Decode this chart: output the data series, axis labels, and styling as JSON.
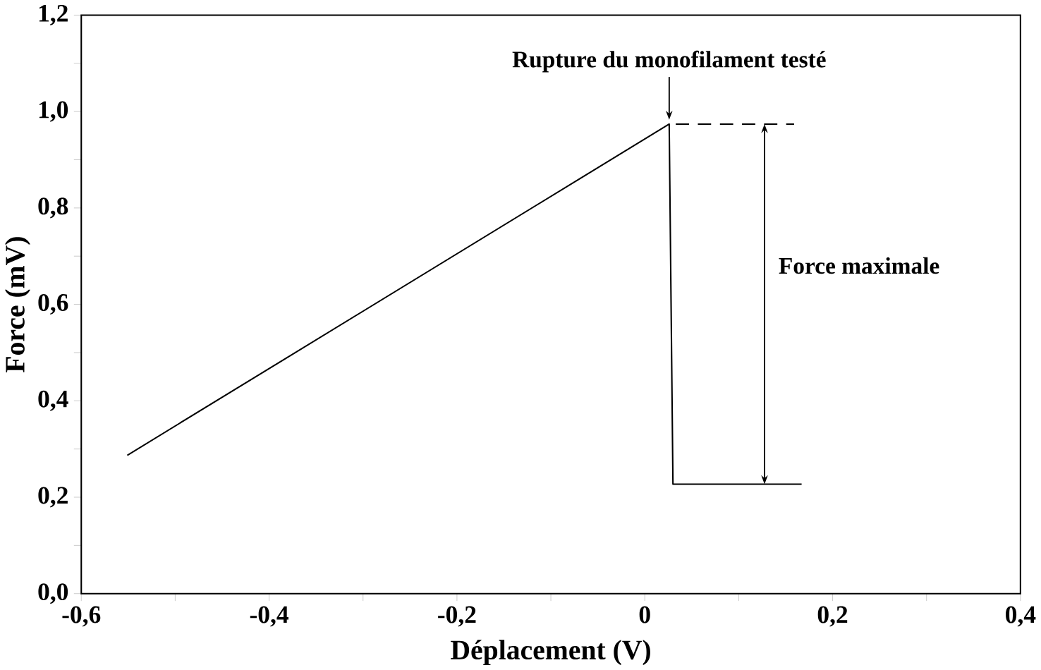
{
  "chart_data": {
    "type": "line",
    "xlabel": "Déplacement (V)",
    "ylabel": "Force (mV)",
    "xlim": [
      -0.6,
      0.4
    ],
    "ylim": [
      0,
      1.2
    ],
    "xticks": [
      {
        "value": -0.6,
        "label": "-0,6"
      },
      {
        "value": -0.5,
        "label": null
      },
      {
        "value": -0.4,
        "label": "-0,4"
      },
      {
        "value": -0.3,
        "label": null
      },
      {
        "value": -0.2,
        "label": "-0,2"
      },
      {
        "value": -0.1,
        "label": null
      },
      {
        "value": 0,
        "label": "0"
      },
      {
        "value": 0.1,
        "label": null
      },
      {
        "value": 0.2,
        "label": "0,2"
      },
      {
        "value": 0.3,
        "label": null
      },
      {
        "value": 0.4,
        "label": "0,4"
      }
    ],
    "yticks": [
      {
        "value": 0,
        "label": "0,0"
      },
      {
        "value": 0.1,
        "label": null
      },
      {
        "value": 0.2,
        "label": "0,2"
      },
      {
        "value": 0.3,
        "label": null
      },
      {
        "value": 0.4,
        "label": "0,4"
      },
      {
        "value": 0.5,
        "label": null
      },
      {
        "value": 0.6,
        "label": "0,6"
      },
      {
        "value": 0.7,
        "label": null
      },
      {
        "value": 0.8,
        "label": "0,8"
      },
      {
        "value": 0.9,
        "label": null
      },
      {
        "value": 1.0,
        "label": "1,0"
      },
      {
        "value": 1.1,
        "label": null
      },
      {
        "value": 1.2,
        "label": "1,2"
      }
    ],
    "series": [
      {
        "color": "#000000",
        "x": [
          -0.551,
          0.026,
          0.03,
          0.167
        ],
        "values": [
          0.287,
          0.974,
          0.227,
          0.227
        ]
      },
      {
        "color": "#000000",
        "line_style": "dashed",
        "x": [
          0.033,
          0.159
        ],
        "values": [
          0.974,
          0.974
        ]
      }
    ],
    "annotations": [
      {
        "text": "Rupture du monofilament testé",
        "x": 0.026,
        "y": 0.974
      },
      "Force maximale"
    ],
    "marker": "none",
    "line_style": "solid"
  }
}
